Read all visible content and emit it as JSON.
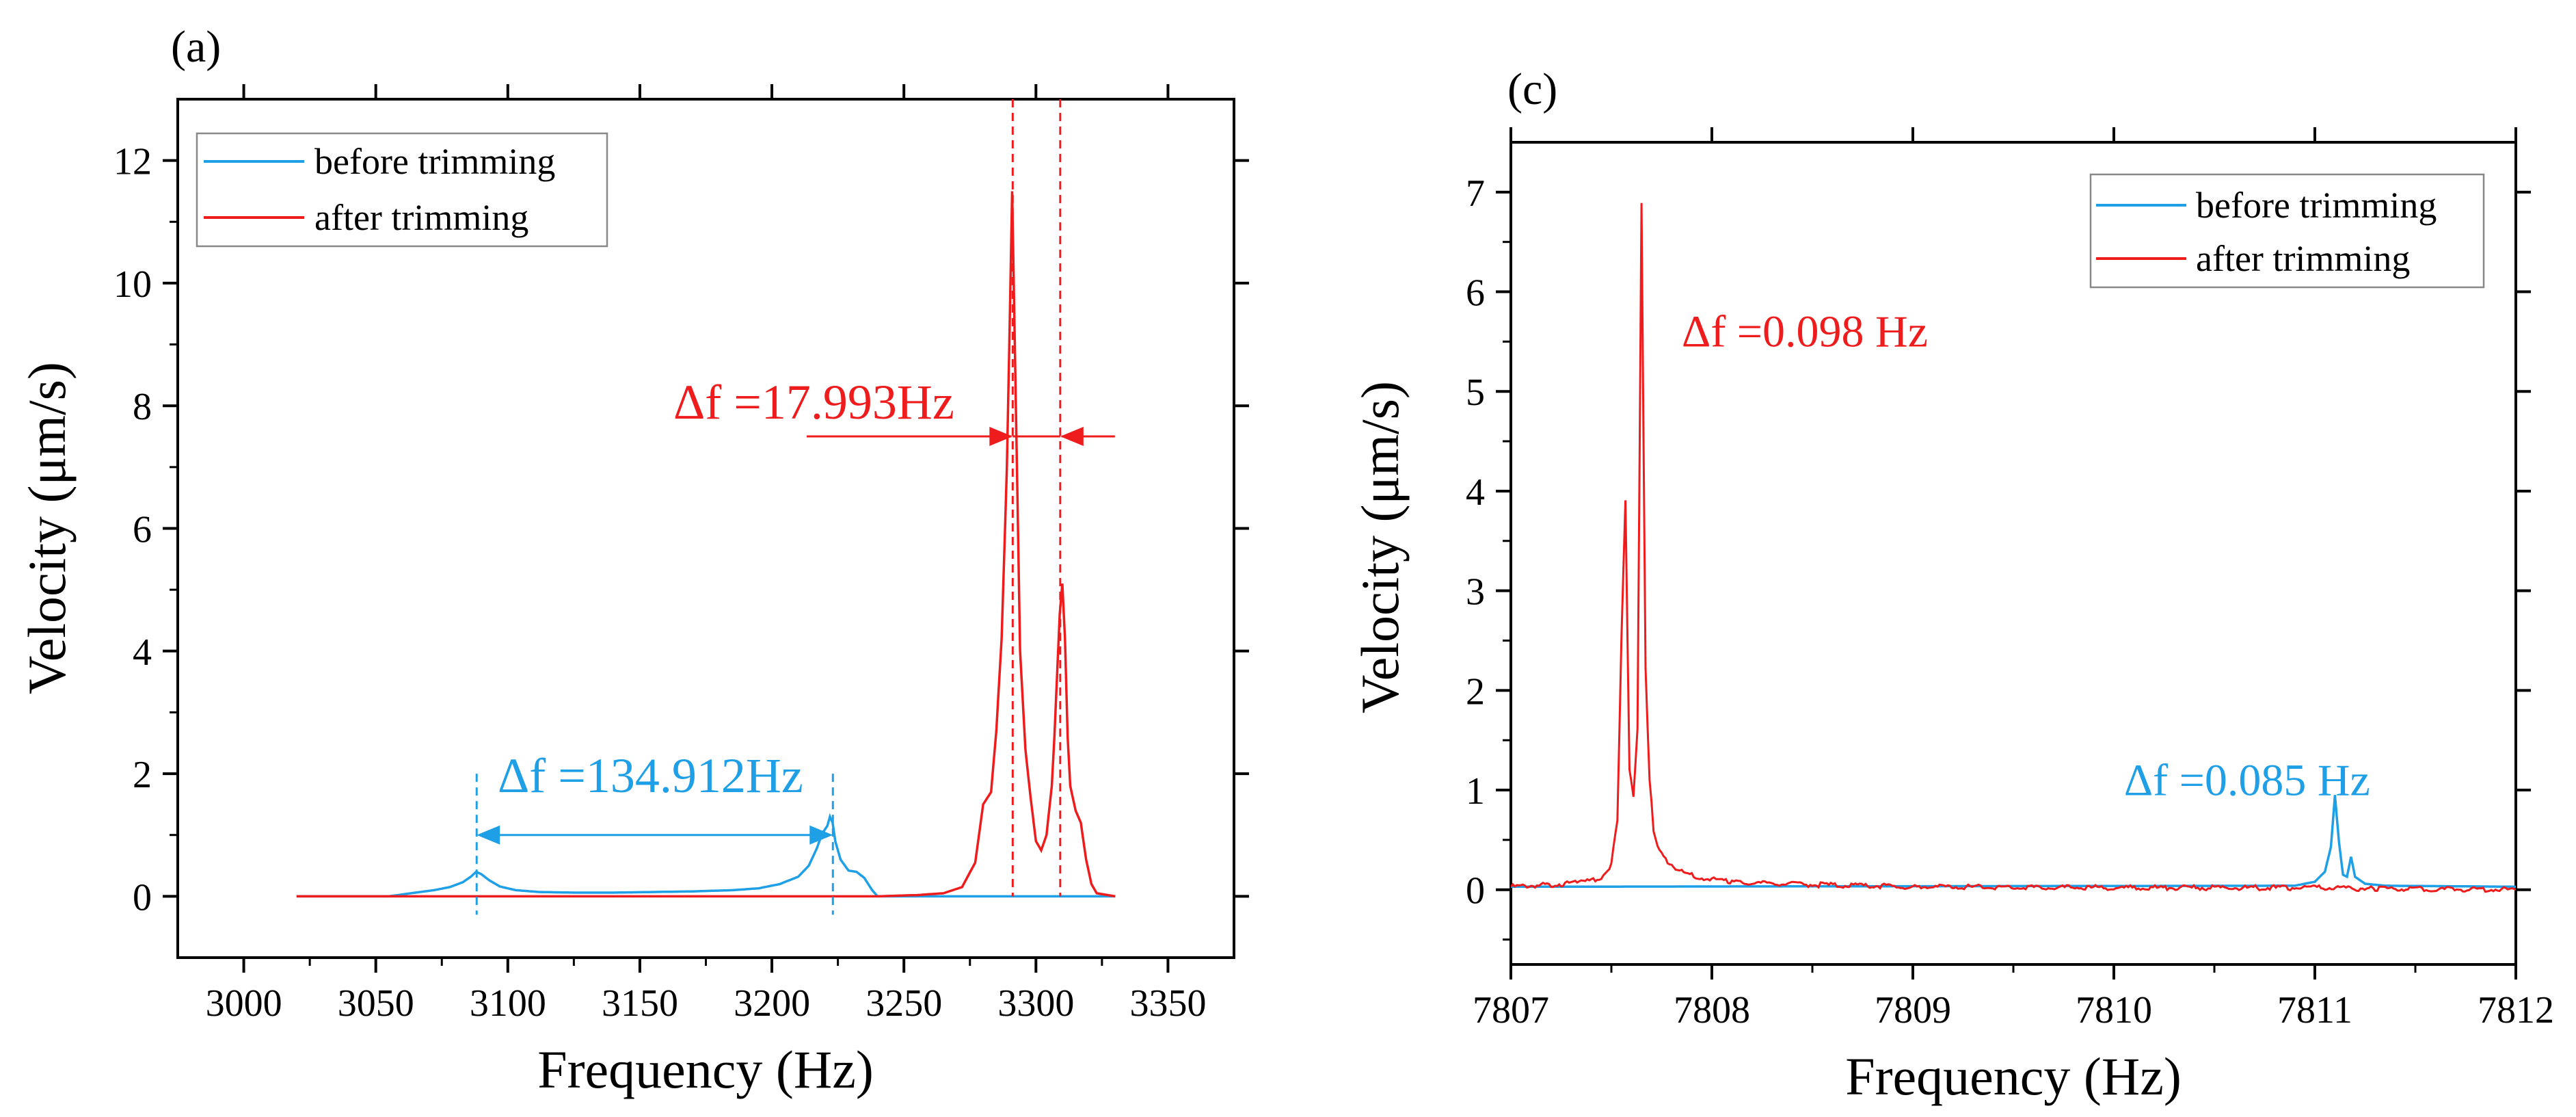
{
  "colors": {
    "before": "#1e9fe6",
    "after": "#ee1c1c",
    "axis": "#000000"
  },
  "chart_data": [
    {
      "panel_label": "(a)",
      "type": "line",
      "xlabel": "Frequency (Hz)",
      "ylabel": "Velocity (μm/s)",
      "xlim": [
        2975,
        3375
      ],
      "ylim": [
        -1,
        13
      ],
      "xticks": [
        3000,
        3050,
        3100,
        3150,
        3200,
        3250,
        3300,
        3350
      ],
      "xtick_labels": [
        "3000",
        "3050",
        "3100",
        "3150",
        "3200",
        "3250",
        "3300",
        "3350"
      ],
      "yticks": [
        0,
        2,
        4,
        6,
        8,
        10,
        12
      ],
      "ytick_labels": [
        "0",
        "2",
        "4",
        "6",
        "8",
        "10",
        "12"
      ],
      "legend": {
        "position": "top-left",
        "entries": [
          "before trimming",
          "after trimming"
        ]
      },
      "series": [
        {
          "name": "before trimming",
          "x": [
            3020,
            3055,
            3065,
            3072,
            3078,
            3083,
            3086,
            3088,
            3090,
            3093,
            3097,
            3103,
            3112,
            3125,
            3140,
            3155,
            3170,
            3185,
            3195,
            3203,
            3210,
            3214,
            3217,
            3219,
            3221,
            3222,
            3223,
            3224,
            3226,
            3229,
            3232,
            3235,
            3238,
            3240,
            3330
          ],
          "y": [
            0.0,
            0.0,
            0.06,
            0.1,
            0.15,
            0.23,
            0.32,
            0.4,
            0.36,
            0.26,
            0.16,
            0.1,
            0.07,
            0.06,
            0.06,
            0.07,
            0.08,
            0.1,
            0.13,
            0.2,
            0.32,
            0.5,
            0.78,
            1.02,
            1.15,
            1.3,
            1.2,
            0.9,
            0.6,
            0.42,
            0.4,
            0.3,
            0.1,
            0.0,
            0.0
          ]
        },
        {
          "name": "after trimming",
          "x": [
            3020,
            3240,
            3255,
            3265,
            3272,
            3277,
            3280,
            3283,
            3285,
            3287,
            3289,
            3290,
            3291,
            3292,
            3293,
            3294,
            3296,
            3298,
            3300,
            3302,
            3304,
            3306,
            3307,
            3308,
            3309,
            3310,
            3311,
            3312,
            3313,
            3315,
            3317,
            3319,
            3321,
            3323,
            3330
          ],
          "y": [
            0.0,
            0.0,
            0.02,
            0.05,
            0.15,
            0.55,
            1.5,
            1.7,
            2.7,
            4.2,
            7.0,
            9.2,
            11.5,
            9.0,
            6.5,
            4.0,
            2.4,
            1.6,
            0.9,
            0.75,
            1.0,
            1.8,
            2.6,
            3.6,
            4.6,
            5.1,
            4.2,
            2.6,
            1.8,
            1.4,
            1.2,
            0.6,
            0.2,
            0.05,
            0.0
          ]
        }
      ],
      "annotations": [
        {
          "text": "Δf =17.993Hz",
          "color": "after",
          "between_x": [
            3291.2,
            3309.2
          ],
          "at_y": 7.5,
          "vlines": [
            3291.2,
            3309.2
          ]
        },
        {
          "text": "Δf =134.912Hz",
          "color": "before",
          "between_x": [
            3088.2,
            3223.1
          ],
          "at_y": 1.0,
          "vlines": [
            3088.2,
            3223.1
          ]
        }
      ]
    },
    {
      "panel_label": "(c)",
      "type": "line",
      "xlabel": "Frequency (Hz)",
      "ylabel": "Velocity (μm/s)",
      "xlim": [
        7807,
        7812
      ],
      "ylim": [
        -0.75,
        7.5
      ],
      "xticks": [
        7807,
        7808,
        7809,
        7810,
        7811,
        7812
      ],
      "xtick_labels": [
        "7807",
        "7808",
        "7809",
        "7810",
        "7811",
        "7812"
      ],
      "yticks": [
        0,
        1,
        2,
        3,
        4,
        5,
        6,
        7
      ],
      "ytick_labels": [
        "0",
        "1",
        "2",
        "3",
        "4",
        "5",
        "6",
        "7"
      ],
      "legend": {
        "position": "top-right",
        "entries": [
          "before trimming",
          "after trimming"
        ]
      },
      "series": [
        {
          "name": "before trimming",
          "x": [
            7807.0,
            7810.9,
            7811.0,
            7811.05,
            7811.08,
            7811.1,
            7811.12,
            7811.14,
            7811.16,
            7811.18,
            7811.2,
            7811.25,
            7811.35,
            7812.0
          ],
          "y": [
            0.0,
            0.01,
            0.05,
            0.15,
            0.4,
            0.92,
            0.45,
            0.12,
            0.1,
            0.3,
            0.1,
            0.03,
            0.01,
            0.0
          ],
          "baseline_offset": 0.03
        },
        {
          "name": "after trimming",
          "x": [
            7807.0,
            7807.2,
            7807.35,
            7807.45,
            7807.5,
            7807.53,
            7807.55,
            7807.57,
            7807.59,
            7807.61,
            7807.63,
            7807.65,
            7807.67,
            7807.69,
            7807.71,
            7807.74,
            7807.78,
            7807.85,
            7807.95,
            7808.1,
            7808.5,
            7809.0,
            7810.0,
            7811.0,
            7811.3,
            7812.0
          ],
          "y": [
            0.03,
            0.05,
            0.07,
            0.12,
            0.25,
            0.7,
            2.5,
            3.92,
            1.2,
            0.95,
            1.6,
            6.9,
            2.2,
            1.12,
            0.6,
            0.38,
            0.28,
            0.18,
            0.12,
            0.08,
            0.05,
            0.03,
            0.02,
            0.02,
            0.01,
            0.0
          ],
          "jitter": 0.025
        }
      ],
      "annotations": [
        {
          "text": "Δf =0.098 Hz",
          "color": "after",
          "anchor_x": 7807.85,
          "anchor_y": 5.45
        },
        {
          "text": "Δf =0.085 Hz",
          "color": "before",
          "anchor_x": 7810.05,
          "anchor_y": 0.95
        }
      ]
    }
  ]
}
